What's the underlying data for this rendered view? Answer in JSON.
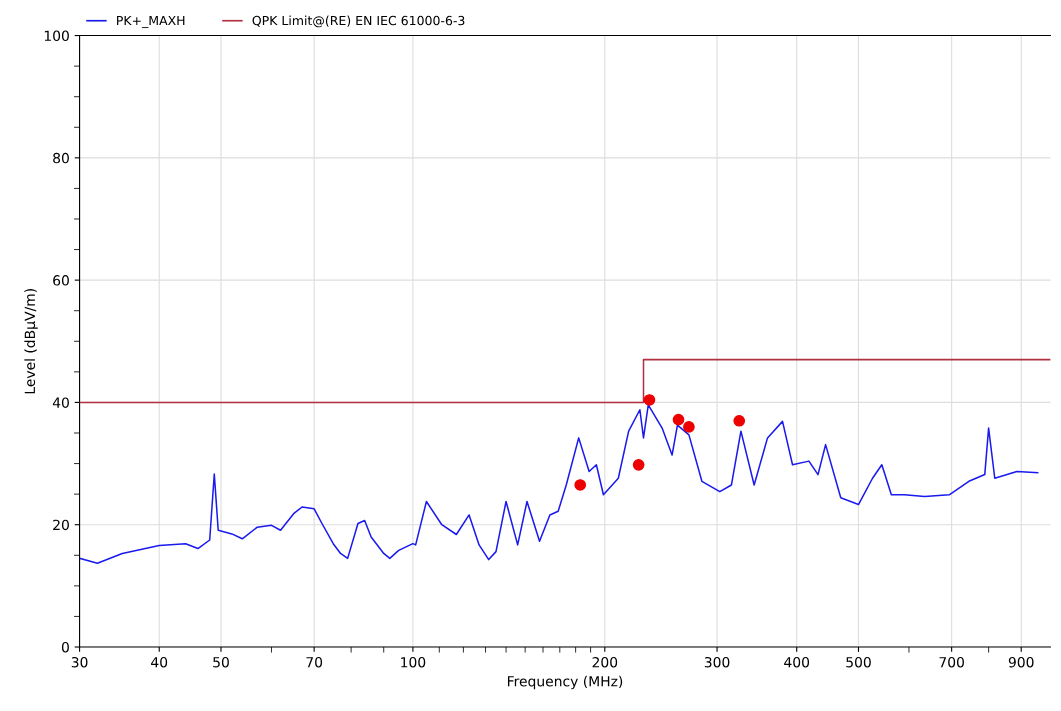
{
  "chart_data": {
    "type": "line",
    "xlabel": "Frequency (MHz)",
    "ylabel": "Level (dBµV/m)",
    "log": "x",
    "grid": true,
    "legend": "top left",
    "marker": "none",
    "xlim": [
      30,
      1000
    ],
    "ylim": [
      0,
      100
    ],
    "xticks": [
      30,
      40,
      50,
      {
        "value": 60,
        "label": null
      },
      70,
      {
        "value": 80,
        "label": null
      },
      {
        "value": 90,
        "label": null
      },
      100,
      {
        "value": 110,
        "label": null
      },
      {
        "value": 120,
        "label": null
      },
      {
        "value": 130,
        "label": null
      },
      {
        "value": 140,
        "label": null
      },
      {
        "value": 150,
        "label": null
      },
      {
        "value": 160,
        "label": null
      },
      {
        "value": 170,
        "label": null
      },
      {
        "value": 180,
        "label": null
      },
      {
        "value": 190,
        "label": null
      },
      200,
      300,
      400,
      500,
      {
        "value": 600,
        "label": null
      },
      700,
      {
        "value": 800,
        "label": null
      },
      900
    ],
    "yticks": [
      0,
      {
        "value": 5,
        "label": null
      },
      {
        "value": 10,
        "label": null
      },
      {
        "value": 15,
        "label": null
      },
      20,
      {
        "value": 25,
        "label": null
      },
      {
        "value": 30,
        "label": null
      },
      {
        "value": 35,
        "label": null
      },
      40,
      {
        "value": 45,
        "label": null
      },
      {
        "value": 50,
        "label": null
      },
      {
        "value": 55,
        "label": null
      },
      60,
      {
        "value": 65,
        "label": null
      },
      {
        "value": 70,
        "label": null
      },
      {
        "value": 75,
        "label": null
      },
      80,
      {
        "value": 85,
        "label": null
      },
      {
        "value": 90,
        "label": null
      },
      {
        "value": 95,
        "label": null
      },
      100
    ],
    "series": [
      {
        "name": "PK+_MAXH",
        "color": "#1a1aee",
        "x": [
          30,
          32,
          35,
          40,
          44,
          46,
          48,
          48.8,
          49.5,
          52,
          54,
          57,
          60,
          62,
          65,
          67,
          70,
          72,
          75,
          77,
          79,
          82,
          84,
          86,
          90,
          92,
          95,
          100,
          101,
          105,
          111,
          117,
          122.5,
          127,
          131.5,
          135,
          140,
          146,
          151,
          158,
          164,
          169,
          174,
          182,
          189,
          194,
          199,
          210,
          218,
          227,
          230,
          234,
          246,
          255,
          260,
          271,
          284,
          303,
          316,
          327,
          343,
          360,
          380,
          394,
          418,
          432,
          444,
          469,
          500,
          526,
          544,
          563,
          590,
          635,
          694,
          745,
          789,
          800,
          818,
          886,
          955
        ],
        "values": [
          14.5,
          13.7,
          15.3,
          16.6,
          16.9,
          16.1,
          17.5,
          28.3,
          19.1,
          18.5,
          17.7,
          19.6,
          19.9,
          19.1,
          21.8,
          22.9,
          22.6,
          20.2,
          16.9,
          15.3,
          14.5,
          20.2,
          20.7,
          18,
          15.3,
          14.5,
          15.8,
          16.9,
          16.7,
          23.8,
          20,
          18.4,
          21.6,
          16.7,
          14.3,
          15.6,
          23.8,
          16.7,
          23.8,
          17.3,
          21.6,
          22.2,
          26.5,
          34.2,
          28.7,
          29.8,
          24.9,
          27.6,
          35.3,
          38.8,
          34.2,
          39.6,
          35.8,
          31.4,
          36.3,
          34.7,
          27.1,
          25.4,
          26.5,
          35.3,
          26.5,
          34.2,
          36.9,
          29.8,
          30.4,
          28.2,
          33.1,
          24.4,
          23.3,
          27.6,
          29.8,
          24.9,
          24.9,
          24.6,
          24.9,
          27.1,
          28.2,
          35.8,
          27.6,
          28.7,
          28.5
        ]
      },
      {
        "name": "QPK Limit@(RE) EN IEC 61000-6-3",
        "color": "#b03040",
        "x": [
          30,
          230,
          230,
          1000
        ],
        "values": [
          40,
          40,
          47,
          47
        ]
      },
      {
        "type": "scatter",
        "color": "#ee0000",
        "marker": "circle",
        "x": [
          183,
          226,
          235,
          261,
          271,
          325
        ],
        "values": [
          26.5,
          29.8,
          40.4,
          37.2,
          36.0,
          37.0
        ]
      }
    ]
  }
}
